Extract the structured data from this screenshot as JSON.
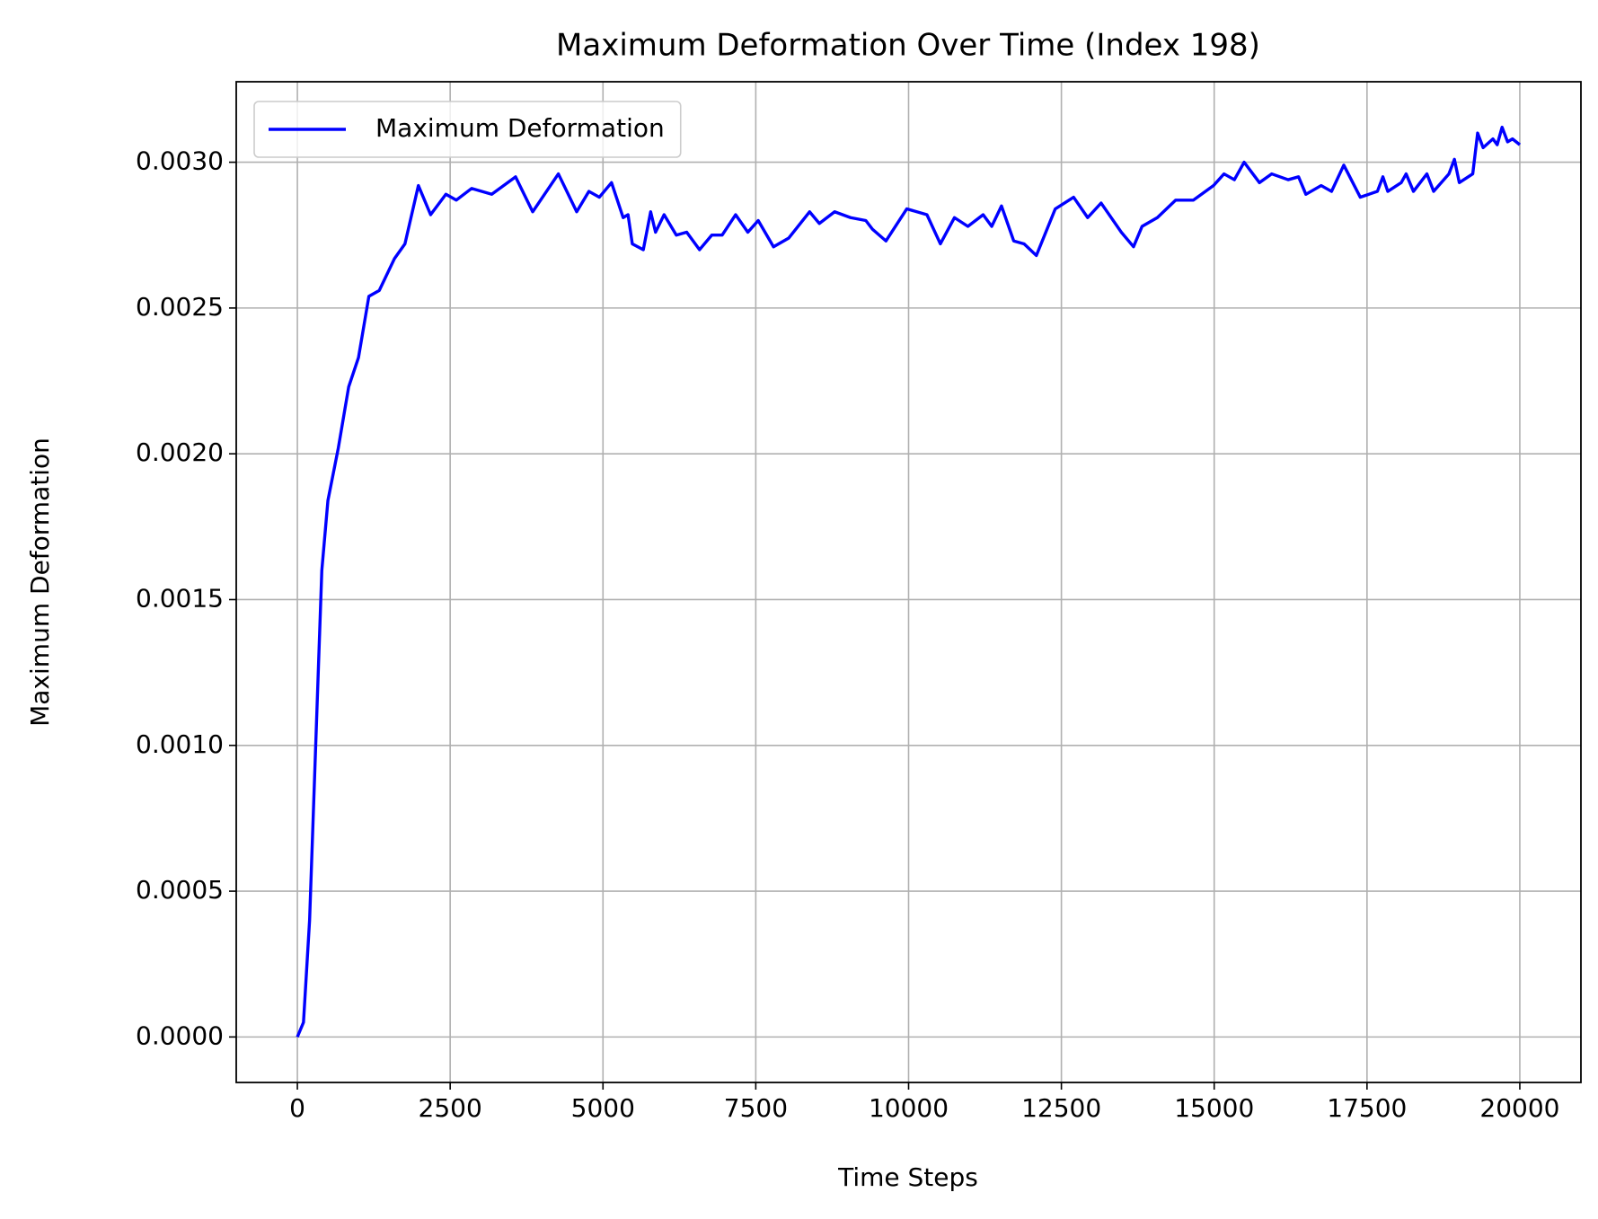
{
  "chart_data": {
    "type": "line",
    "title": "Maximum Deformation Over Time (Index 198)",
    "xlabel": "Time Steps",
    "ylabel": "Maximum Deformation",
    "legend": "upper left",
    "grid": true,
    "xlim": [
      -1000,
      21000
    ],
    "ylim": [
      -0.000156,
      0.003276
    ],
    "xticks": [
      0,
      2500,
      5000,
      7500,
      10000,
      12500,
      15000,
      17500,
      20000
    ],
    "yticks": [
      {
        "value": 0,
        "label": "0.0000"
      },
      {
        "value": 0.0005,
        "label": "0.0005"
      },
      {
        "value": 0.001,
        "label": "0.0010"
      },
      {
        "value": 0.0015,
        "label": "0.0015"
      },
      {
        "value": 0.002,
        "label": "0.0020"
      },
      {
        "value": 0.0025,
        "label": "0.0025"
      },
      {
        "value": 0.003,
        "label": "0.0030"
      }
    ],
    "x": [
      0,
      100,
      200,
      300,
      400,
      500,
      670,
      840,
      1000,
      1170,
      1340,
      1590,
      1760,
      1980,
      2180,
      2430,
      2600,
      2850,
      3180,
      3570,
      3850,
      4270,
      4570,
      4770,
      4940,
      5140,
      5330,
      5410,
      5480,
      5660,
      5780,
      5860,
      6000,
      6200,
      6370,
      6580,
      6780,
      6950,
      7170,
      7370,
      7540,
      7790,
      8040,
      8380,
      8540,
      8790,
      9050,
      9300,
      9410,
      9630,
      9970,
      10300,
      10520,
      10750,
      10970,
      11220,
      11360,
      11520,
      11720,
      11890,
      12090,
      12400,
      12700,
      12930,
      13150,
      13480,
      13680,
      13820,
      14070,
      14370,
      14660,
      14990,
      15160,
      15330,
      15490,
      15740,
      15940,
      16210,
      16380,
      16500,
      16750,
      16920,
      17120,
      17390,
      17670,
      17760,
      17840,
      18060,
      18140,
      18260,
      18480,
      18590,
      18840,
      18930,
      19010,
      19230,
      19310,
      19400,
      19560,
      19630,
      19710,
      19800,
      19880,
      20000
    ],
    "series": [
      {
        "name": "Maximum Deformation",
        "color": "#0000ff",
        "values": [
          0,
          5e-05,
          0.0004,
          0.001,
          0.0016,
          0.00184,
          0.00202,
          0.00223,
          0.00233,
          0.00254,
          0.00256,
          0.00267,
          0.00272,
          0.00292,
          0.00282,
          0.00289,
          0.00287,
          0.00291,
          0.00289,
          0.00295,
          0.00283,
          0.00296,
          0.00283,
          0.0029,
          0.00288,
          0.00293,
          0.00281,
          0.00282,
          0.00272,
          0.0027,
          0.00283,
          0.00276,
          0.00282,
          0.00275,
          0.00276,
          0.0027,
          0.00275,
          0.00275,
          0.00282,
          0.00276,
          0.0028,
          0.00271,
          0.00274,
          0.00283,
          0.00279,
          0.00283,
          0.00281,
          0.0028,
          0.00277,
          0.00273,
          0.00284,
          0.00282,
          0.00272,
          0.00281,
          0.00278,
          0.00282,
          0.00278,
          0.00285,
          0.00273,
          0.00272,
          0.00268,
          0.00284,
          0.00288,
          0.00281,
          0.00286,
          0.00276,
          0.00271,
          0.00278,
          0.00281,
          0.00287,
          0.00287,
          0.00292,
          0.00296,
          0.00294,
          0.003,
          0.00293,
          0.00296,
          0.00294,
          0.00295,
          0.00289,
          0.00292,
          0.0029,
          0.00299,
          0.00288,
          0.0029,
          0.00295,
          0.0029,
          0.00293,
          0.00296,
          0.0029,
          0.00296,
          0.0029,
          0.00296,
          0.00301,
          0.00293,
          0.00296,
          0.0031,
          0.00305,
          0.00308,
          0.00306,
          0.00312,
          0.00307,
          0.00308,
          0.00306
        ]
      }
    ]
  }
}
